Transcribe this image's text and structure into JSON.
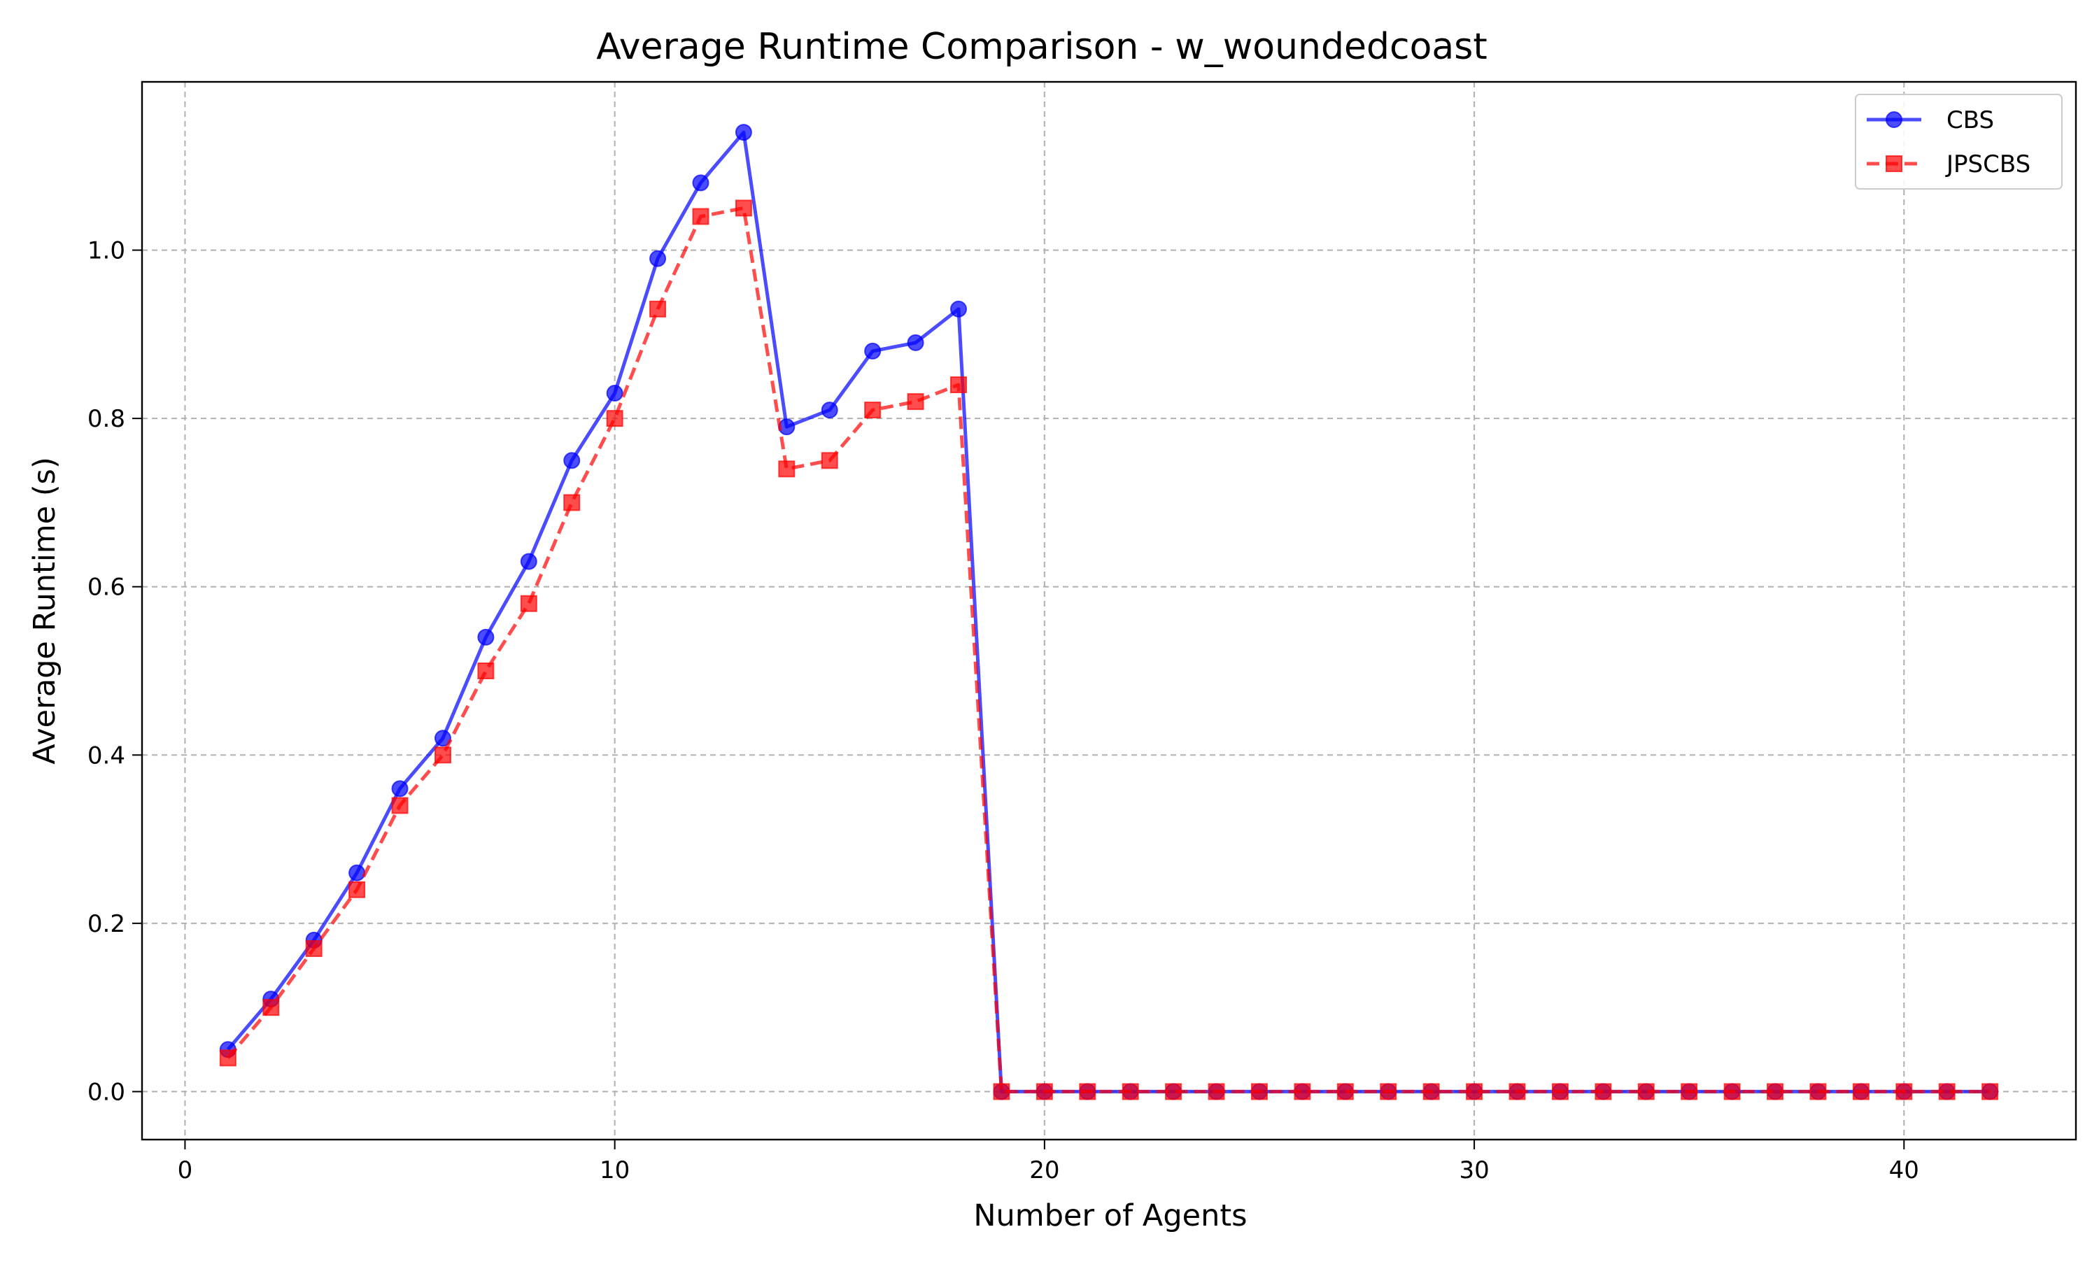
{
  "chart_data": {
    "type": "line",
    "title": "Average Runtime Comparison - w_woundedcoast",
    "xlabel": "Number of Agents",
    "ylabel": "Average Runtime (s)",
    "xlim": [
      -1,
      44
    ],
    "ylim": [
      -0.057,
      1.2
    ],
    "xticks": [
      0,
      10,
      20,
      30,
      40
    ],
    "yticks": [
      0.0,
      0.2,
      0.4,
      0.6,
      0.8,
      1.0
    ],
    "xtick_labels": [
      "0",
      "10",
      "20",
      "30",
      "40"
    ],
    "ytick_labels": [
      "0.0",
      "0.2",
      "0.4",
      "0.6",
      "0.8",
      "1.0"
    ],
    "grid": true,
    "legend_position": "top-right",
    "x": [
      1,
      2,
      3,
      4,
      5,
      6,
      7,
      8,
      9,
      10,
      11,
      12,
      13,
      14,
      15,
      16,
      17,
      18,
      19,
      20,
      21,
      22,
      23,
      24,
      25,
      26,
      27,
      28,
      29,
      30,
      31,
      32,
      33,
      34,
      35,
      36,
      37,
      38,
      39,
      40,
      41,
      42
    ],
    "series": [
      {
        "name": "CBS",
        "color": "#0000ff",
        "line_style": "solid",
        "marker": "circle",
        "values": [
          0.05,
          0.11,
          0.18,
          0.26,
          0.36,
          0.42,
          0.54,
          0.63,
          0.75,
          0.83,
          0.99,
          1.08,
          1.14,
          0.79,
          0.81,
          0.88,
          0.89,
          0.93,
          0,
          0,
          0,
          0,
          0,
          0,
          0,
          0,
          0,
          0,
          0,
          0,
          0,
          0,
          0,
          0,
          0,
          0,
          0,
          0,
          0,
          0,
          0,
          0
        ]
      },
      {
        "name": "JPSCBS",
        "color": "#ff0000",
        "line_style": "dashed",
        "marker": "square",
        "values": [
          0.04,
          0.1,
          0.17,
          0.24,
          0.34,
          0.4,
          0.5,
          0.58,
          0.7,
          0.8,
          0.93,
          1.04,
          1.05,
          0.74,
          0.75,
          0.81,
          0.82,
          0.84,
          0,
          0,
          0,
          0,
          0,
          0,
          0,
          0,
          0,
          0,
          0,
          0,
          0,
          0,
          0,
          0,
          0,
          0,
          0,
          0,
          0,
          0,
          0,
          0
        ]
      }
    ]
  }
}
